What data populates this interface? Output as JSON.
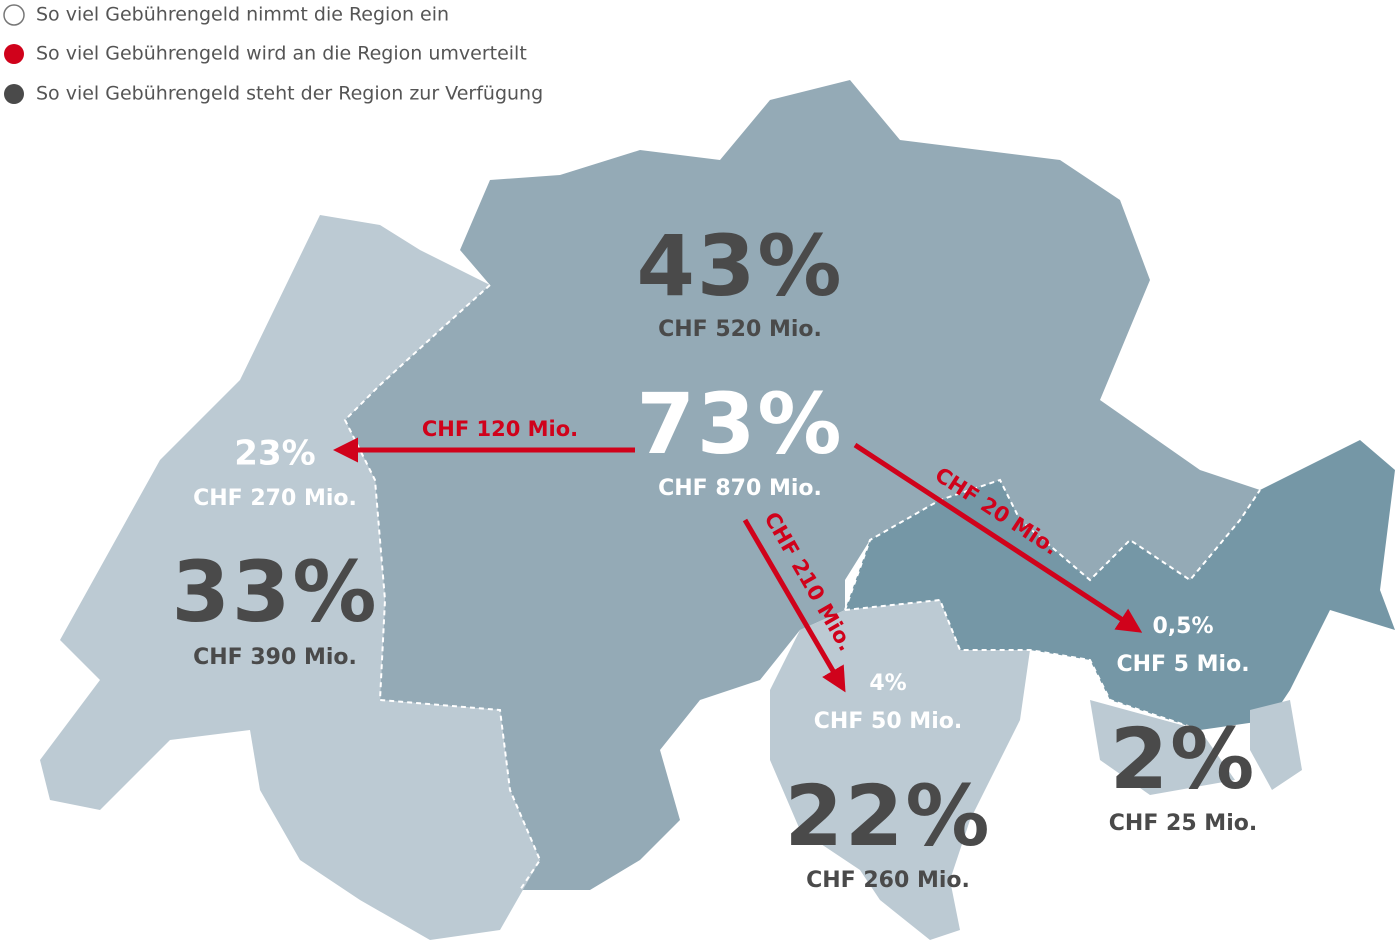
{
  "legend": [
    "So viel Gebührengeld nimmt die Region ein",
    "So viel Gebührengeld wird an die Region umverteilt",
    "So viel Gebührengeld steht der Region zur Verfügung"
  ],
  "regions": [
    {
      "income_share": "73%",
      "income_amount": "CHF 870 Mio.",
      "available_share": "43%",
      "available_amount": "CHF 520 Mio."
    },
    {
      "income_share": "23%",
      "income_amount": "CHF 270 Mio.",
      "available_share": "33%",
      "available_amount": "CHF 390 Mio."
    },
    {
      "income_share": "4%",
      "income_amount": "CHF 50 Mio.",
      "available_share": "22%",
      "available_amount": "CHF 260 Mio."
    },
    {
      "income_share": "0,5%",
      "income_amount": "CHF 5 Mio.",
      "available_share": "2%",
      "available_amount": "CHF 25 Mio."
    }
  ],
  "transfers": [
    "CHF 120 Mio.",
    "CHF 210 Mio.",
    "CHF 20 Mio."
  ]
}
